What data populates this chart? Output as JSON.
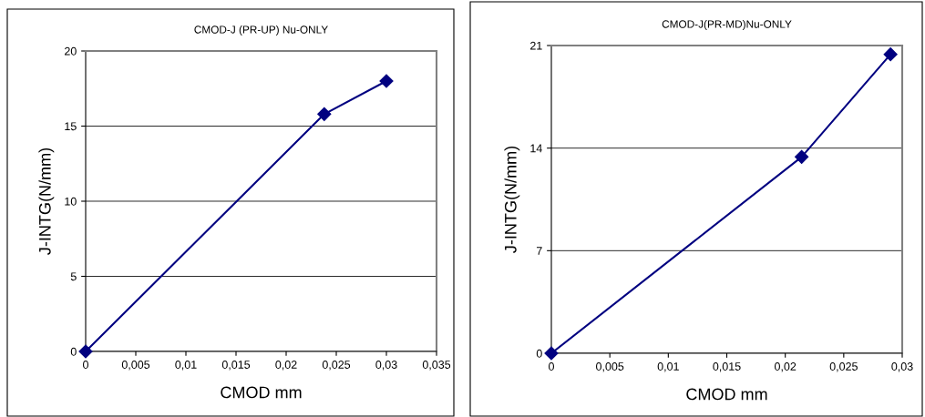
{
  "chart_data": [
    {
      "type": "line",
      "title": "CMOD-J (PR-UP) Nu-ONLY",
      "xlabel": "CMOD mm",
      "ylabel": "J-INTG(N/mm)",
      "x": [
        0,
        0.0238,
        0.03
      ],
      "series": [
        {
          "color": "#000080",
          "values": [
            0,
            15.8,
            18.0
          ]
        }
      ],
      "xlim": [
        0,
        0.035
      ],
      "ylim": [
        0,
        20
      ],
      "xticks": [
        0,
        {
          "value": 0.005,
          "label": "0,005"
        },
        {
          "value": 0.01,
          "label": "0,01"
        },
        {
          "value": 0.015,
          "label": "0,015"
        },
        {
          "value": 0.02,
          "label": "0,02"
        },
        {
          "value": 0.025,
          "label": "0,025"
        },
        {
          "value": 0.03,
          "label": "0,03"
        },
        {
          "value": 0.035,
          "label": "0,035"
        }
      ],
      "yticks": [
        0,
        5,
        10,
        15,
        20
      ],
      "grid": "y",
      "marker": "diamond",
      "line_style": "solid",
      "legend": false
    },
    {
      "type": "line",
      "title": "CMOD-J(PR-MD)Nu-ONLY",
      "xlabel": "CMOD mm",
      "ylabel": "J-INTG(N/mm)",
      "x": [
        0,
        0.0214,
        0.029
      ],
      "series": [
        {
          "color": "#000080",
          "values": [
            0,
            13.4,
            20.4
          ]
        }
      ],
      "xlim": [
        0,
        0.03
      ],
      "ylim": [
        0,
        21
      ],
      "xticks": [
        0,
        {
          "value": 0.005,
          "label": "0,005"
        },
        {
          "value": 0.01,
          "label": "0,01"
        },
        {
          "value": 0.015,
          "label": "0,015"
        },
        {
          "value": 0.02,
          "label": "0,02"
        },
        {
          "value": 0.025,
          "label": "0,025"
        },
        {
          "value": 0.03,
          "label": "0,03"
        }
      ],
      "yticks": [
        0,
        7,
        14,
        21
      ],
      "grid": "y",
      "marker": "diamond",
      "line_style": "solid",
      "legend": false
    }
  ]
}
